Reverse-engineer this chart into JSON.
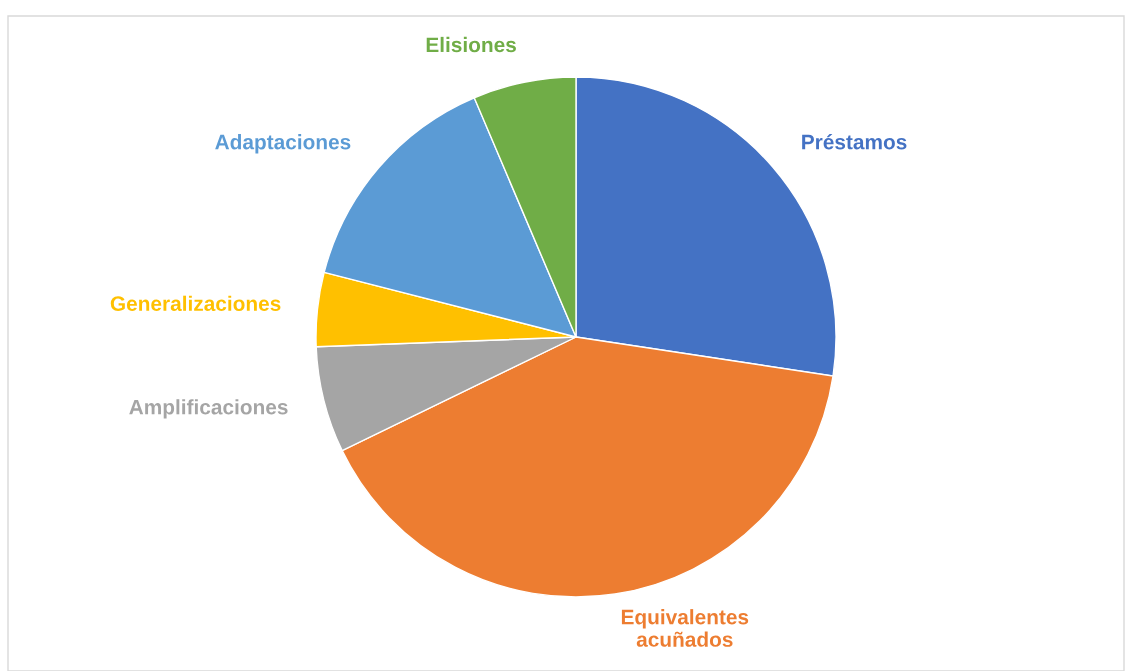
{
  "chart_data": {
    "type": "pie",
    "categories": [
      "Préstamos",
      "Equivalentes\nacuñados",
      "Amplificaciones",
      "Generalizaciones",
      "Adaptaciones",
      "Elisiones"
    ],
    "values": [
      27.4,
      40.4,
      6.6,
      4.6,
      14.6,
      6.4
    ],
    "colors": [
      "#4472c4",
      "#ed7d31",
      "#a5a5a5",
      "#ffc000",
      "#5b9bd5",
      "#70ad47"
    ],
    "legend": false
  }
}
